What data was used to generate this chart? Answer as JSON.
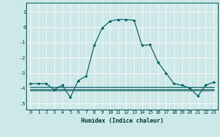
{
  "xlabel": "Humidex (Indice chaleur)",
  "ylabel": "",
  "background_color": "#cce8e8",
  "grid_color": "#ffffff",
  "line_color": "#006060",
  "xlim": [
    -0.5,
    23.5
  ],
  "ylim": [
    -5.4,
    1.6
  ],
  "yticks": [
    1,
    0,
    -1,
    -2,
    -3,
    -4,
    -5
  ],
  "xticks": [
    0,
    1,
    2,
    3,
    4,
    5,
    6,
    7,
    8,
    9,
    10,
    11,
    12,
    13,
    14,
    15,
    16,
    17,
    18,
    19,
    20,
    21,
    22,
    23
  ],
  "x": [
    0,
    1,
    2,
    3,
    4,
    5,
    6,
    7,
    8,
    9,
    10,
    11,
    12,
    13,
    14,
    15,
    16,
    17,
    18,
    19,
    20,
    21,
    22,
    23
  ],
  "y_main": [
    -3.7,
    -3.7,
    -3.7,
    -4.1,
    -3.8,
    -4.6,
    -3.5,
    -3.2,
    -1.2,
    -0.05,
    0.4,
    0.5,
    0.5,
    0.45,
    -1.2,
    -1.15,
    -2.3,
    -3.0,
    -3.7,
    -3.8,
    -4.0,
    -4.5,
    -3.8,
    -3.6
  ],
  "y_flat1": [
    -3.9,
    -3.9,
    -3.9,
    -3.9,
    -3.9,
    -3.9,
    -3.9,
    -3.9,
    -3.9,
    -3.9,
    -3.9,
    -3.9,
    -3.9,
    -3.9,
    -3.9,
    -3.9,
    -3.9,
    -3.9,
    -3.9,
    -3.9,
    -3.9,
    -3.9,
    -3.9,
    -3.9
  ],
  "y_flat2": [
    -4.05,
    -4.05,
    -4.05,
    -4.05,
    -4.05,
    -4.05,
    -4.05,
    -4.05,
    -4.05,
    -4.05,
    -4.05,
    -4.05,
    -4.05,
    -4.05,
    -4.05,
    -4.05,
    -4.05,
    -4.05,
    -4.05,
    -4.05,
    -4.05,
    -4.05,
    -4.05,
    -4.05
  ],
  "y_flat3": [
    -4.15,
    -4.15,
    -4.15,
    -4.15,
    -4.15,
    -4.15,
    -4.15,
    -4.15,
    -4.15,
    -4.15,
    -4.15,
    -4.15,
    -4.15,
    -4.15,
    -4.15,
    -4.15,
    -4.15,
    -4.15,
    -4.15,
    -4.15,
    -4.15,
    -4.15,
    -4.15,
    -4.15
  ]
}
